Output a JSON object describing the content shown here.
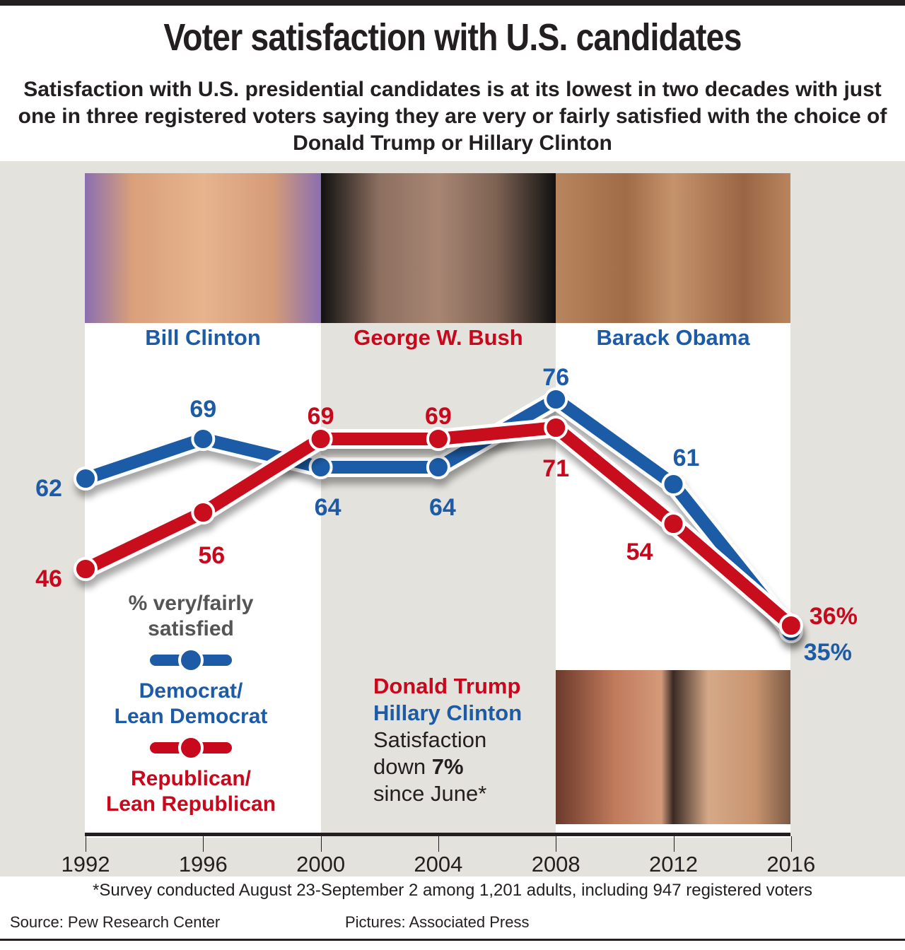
{
  "header": {
    "title": "Voter satisfaction with U.S. candidates",
    "subtitle": "Satisfaction with U.S. presidential candidates is at its lowest in two decades with just one in three registered voters saying they are very or fairly satisfied with the choice of Donald Trump or Hillary Clinton"
  },
  "presidents": [
    {
      "name": "Bill Clinton",
      "color": "#1d5ba6",
      "span": [
        "1992",
        "2000"
      ]
    },
    {
      "name": "George W. Bush",
      "color": "#c8081c",
      "span": [
        "2000",
        "2008"
      ]
    },
    {
      "name": "Barack Obama",
      "color": "#1d5ba6",
      "span": [
        "2008",
        "2016"
      ]
    }
  ],
  "legend": {
    "heading_line1": "% very/fairly",
    "heading_line2": "satisfied",
    "dem_line1": "Democrat/",
    "dem_line2": "Lean Democrat",
    "rep_line1": "Republican/",
    "rep_line2": "Lean Republican"
  },
  "note": {
    "trump": "Donald Trump",
    "clinton": "Hillary Clinton",
    "line1": "Satisfaction",
    "line2_pre": "down ",
    "line2_bold": "7%",
    "line3": "since June*"
  },
  "footer": {
    "footnote": "*Survey conducted August 23-September 2 among 1,201 adults, including 947 registered voters",
    "source": "Source: Pew Research Center",
    "pictures": "Pictures: Associated Press"
  },
  "colors": {
    "democrat": "#1d5ba6",
    "republican": "#c8081c",
    "background": "#e4e2dc",
    "text": "#231f20"
  },
  "chart_data": {
    "type": "line",
    "title": "Voter satisfaction with U.S. candidates",
    "ylabel": "% very/fairly satisfied",
    "xlabel": "",
    "x": [
      "1992",
      "1996",
      "2000",
      "2004",
      "2008",
      "2012",
      "2016"
    ],
    "ylim": [
      30,
      80
    ],
    "grid": false,
    "series": [
      {
        "name": "Democrat/Lean Democrat",
        "color": "#1d5ba6",
        "values": [
          62,
          69,
          64,
          64,
          76,
          61,
          35
        ],
        "labels": [
          "62",
          "69",
          "64",
          "64",
          "76",
          "61",
          "35%"
        ]
      },
      {
        "name": "Republican/Lean Republican",
        "color": "#c8081c",
        "values": [
          46,
          56,
          69,
          69,
          71,
          54,
          36
        ],
        "labels": [
          "46",
          "56",
          "69",
          "69",
          "71",
          "54",
          "36%"
        ]
      }
    ]
  }
}
